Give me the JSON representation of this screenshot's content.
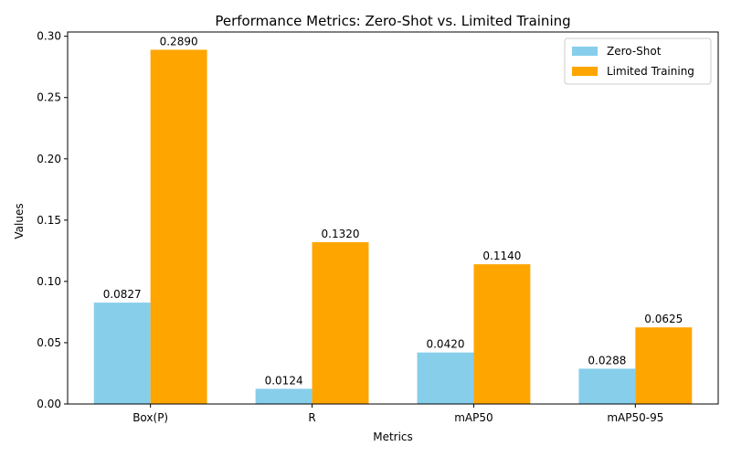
{
  "chart_data": {
    "type": "bar",
    "title": "Performance Metrics: Zero-Shot vs. Limited Training",
    "xlabel": "Metrics",
    "ylabel": "Values",
    "categories": [
      "Box(P)",
      "R",
      "mAP50",
      "mAP50-95"
    ],
    "series": [
      {
        "name": "Zero-Shot",
        "values": [
          0.0827,
          0.0124,
          0.042,
          0.0288
        ],
        "color": "#87ceeb",
        "labels": [
          "0.0827",
          "0.0124",
          "0.0420",
          "0.0288"
        ]
      },
      {
        "name": "Limited Training",
        "values": [
          0.289,
          0.132,
          0.114,
          0.0625
        ],
        "color": "#ffa500",
        "labels": [
          "0.2890",
          "0.1320",
          "0.1140",
          "0.0625"
        ]
      }
    ],
    "ylim": [
      0,
      0.3035
    ],
    "yticks": [
      0.0,
      0.05,
      0.1,
      0.15,
      0.2,
      0.25,
      0.3
    ],
    "ytick_labels": [
      "0.00",
      "0.05",
      "0.10",
      "0.15",
      "0.20",
      "0.25",
      "0.30"
    ],
    "grid": false,
    "legend_position": "top-right"
  }
}
